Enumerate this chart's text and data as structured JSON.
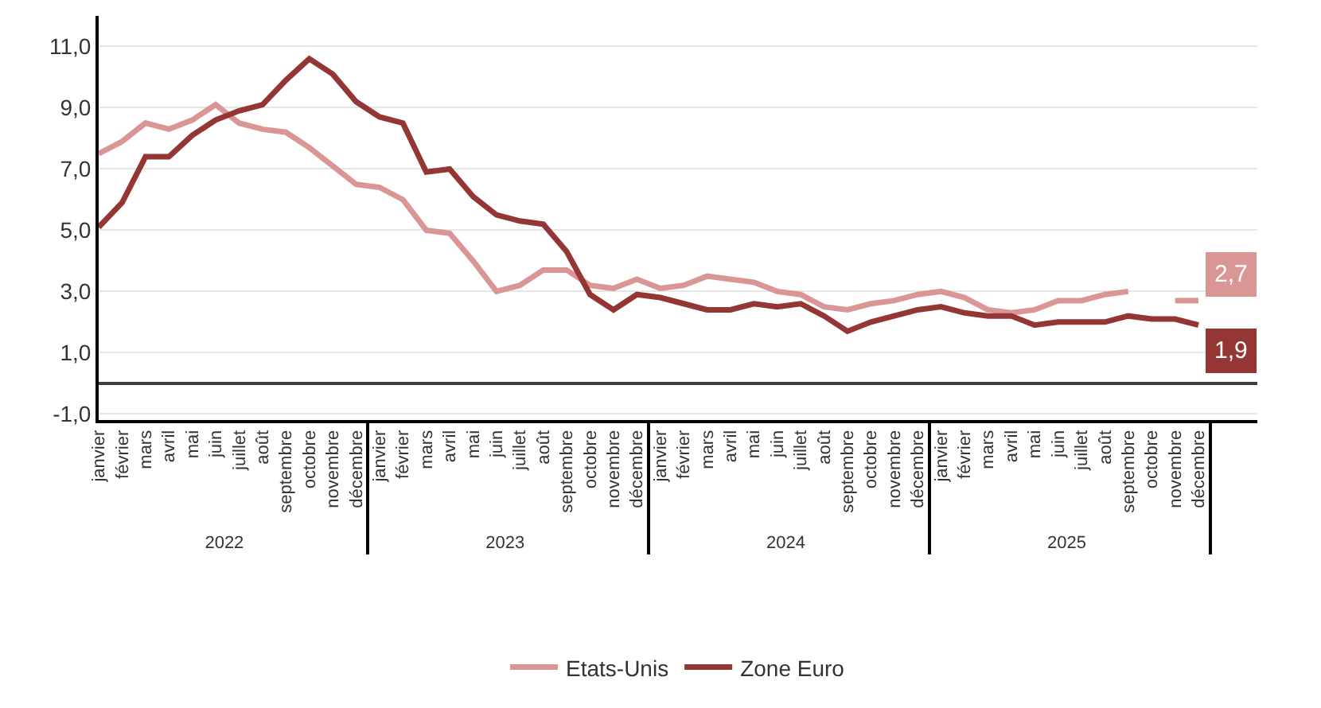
{
  "chart_data": {
    "type": "line",
    "categories": [
      "janvier",
      "février",
      "mars",
      "avril",
      "mai",
      "juin",
      "juillet",
      "août",
      "septembre",
      "octobre",
      "novembre",
      "décembre",
      "janvier",
      "février",
      "mars",
      "avril",
      "mai",
      "juin",
      "juillet",
      "août",
      "septembre",
      "octobre",
      "novembre",
      "décembre",
      "janvier",
      "février",
      "mars",
      "avril",
      "mai",
      "juin",
      "juillet",
      "août",
      "septembre",
      "octobre",
      "novembre",
      "décembre",
      "janvier",
      "février",
      "mars",
      "avril",
      "mai",
      "juin",
      "juillet",
      "août",
      "septembre",
      "octobre",
      "novembre",
      "décembre"
    ],
    "annotations": [
      "2022",
      "2023",
      "2024",
      "2025"
    ],
    "series": [
      {
        "name": "Etats-Unis",
        "color": "#da9694",
        "values": [
          7.5,
          7.9,
          8.5,
          8.3,
          8.6,
          9.1,
          8.5,
          8.3,
          8.2,
          7.7,
          7.1,
          6.5,
          6.4,
          6.0,
          5.0,
          4.9,
          4.0,
          3.0,
          3.2,
          3.7,
          3.7,
          3.2,
          3.1,
          3.4,
          3.1,
          3.2,
          3.5,
          3.4,
          3.3,
          3.0,
          2.9,
          2.5,
          2.4,
          2.6,
          2.7,
          2.9,
          3.0,
          2.8,
          2.4,
          2.3,
          2.4,
          2.7,
          2.7,
          2.9,
          3.0,
          null,
          2.7,
          2.7
        ],
        "value_labels": [
          null,
          null,
          null,
          null,
          null,
          null,
          null,
          null,
          null,
          null,
          null,
          null,
          null,
          null,
          null,
          null,
          null,
          null,
          null,
          null,
          null,
          null,
          null,
          null,
          null,
          null,
          null,
          null,
          null,
          null,
          null,
          null,
          null,
          null,
          null,
          null,
          null,
          null,
          null,
          null,
          null,
          null,
          null,
          null,
          null,
          null,
          null,
          "2,7"
        ]
      },
      {
        "name": "Zone Euro",
        "color": "#943634",
        "values": [
          5.1,
          5.9,
          7.4,
          7.4,
          8.1,
          8.6,
          8.9,
          9.1,
          9.9,
          10.6,
          10.1,
          9.2,
          8.7,
          8.5,
          6.9,
          7.0,
          6.1,
          5.5,
          5.3,
          5.2,
          4.3,
          2.9,
          2.4,
          2.9,
          2.8,
          2.6,
          2.4,
          2.4,
          2.6,
          2.5,
          2.6,
          2.2,
          1.7,
          2.0,
          2.2,
          2.4,
          2.5,
          2.3,
          2.2,
          2.2,
          1.9,
          2.0,
          2.0,
          2.0,
          2.2,
          2.1,
          2.1,
          1.9
        ],
        "value_labels": [
          null,
          null,
          null,
          null,
          null,
          null,
          null,
          null,
          null,
          null,
          null,
          null,
          null,
          null,
          null,
          null,
          null,
          null,
          null,
          null,
          null,
          null,
          null,
          null,
          null,
          null,
          null,
          null,
          null,
          null,
          null,
          null,
          null,
          null,
          null,
          null,
          null,
          null,
          null,
          null,
          null,
          null,
          null,
          null,
          null,
          null,
          null,
          "1,9"
        ]
      }
    ],
    "ylim": [
      -1.2,
      12
    ],
    "yticks": [
      {
        "value": -1,
        "label": "-1,0"
      },
      {
        "value": 1,
        "label": "1,0"
      },
      {
        "value": 3,
        "label": "3,0"
      },
      {
        "value": 5,
        "label": "5,0"
      },
      {
        "value": 7,
        "label": "7,0"
      },
      {
        "value": 9,
        "label": "9,0"
      },
      {
        "value": 11,
        "label": "11,0"
      }
    ],
    "grid": "y",
    "legend": "bottom",
    "marker": "none",
    "line_style": "solid"
  }
}
